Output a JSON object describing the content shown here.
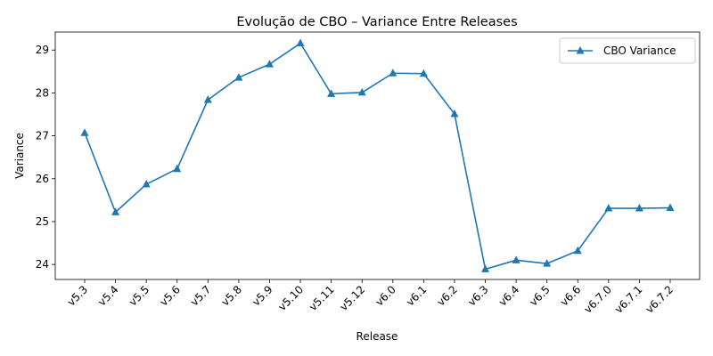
{
  "chart_data": {
    "type": "line",
    "title": "Evolução de CBO – Variance Entre Releases",
    "xlabel": "Release",
    "ylabel": "Variance",
    "categories": [
      "v5.3",
      "v5.4",
      "v5.5",
      "v5.6",
      "v5.7",
      "v5.8",
      "v5.9",
      "v5.10",
      "v5.11",
      "v5.12",
      "v6.0",
      "v6.1",
      "v6.2",
      "v6.3",
      "v6.4",
      "v6.5",
      "v6.6",
      "v6.7.0",
      "v6.7.1",
      "v6.7.2"
    ],
    "series": [
      {
        "name": "CBO Variance",
        "color": "#1f77b4",
        "marker": "triangle-up",
        "values": [
          27.07,
          25.22,
          25.87,
          26.23,
          27.84,
          28.36,
          28.67,
          29.16,
          27.98,
          28.01,
          28.46,
          28.45,
          27.51,
          23.89,
          24.1,
          24.02,
          24.32,
          25.31,
          25.31,
          25.32
        ]
      }
    ],
    "ylim": [
      23.65,
      29.42
    ],
    "yticks": [
      24,
      25,
      26,
      27,
      28,
      29
    ],
    "grid": false,
    "legend_position": "top-right"
  }
}
